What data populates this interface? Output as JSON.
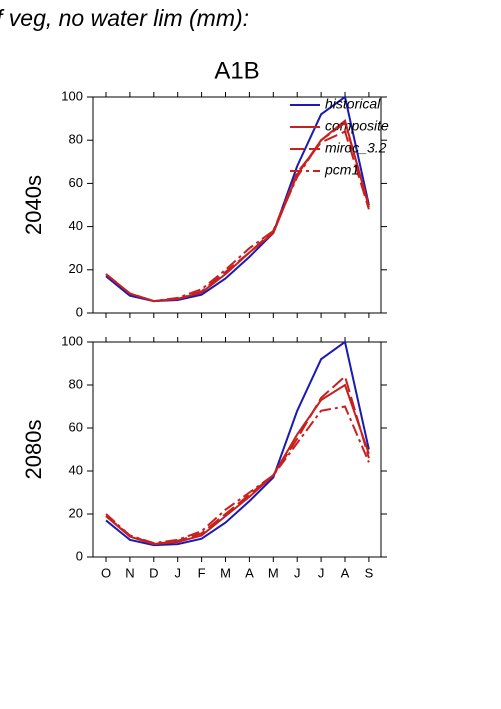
{
  "header": "f veg, no water lim (mm):",
  "chart_data": [
    {
      "type": "line",
      "title": "A1B",
      "y_label": "2040s",
      "ylim": [
        0,
        100
      ],
      "yticks": [
        0,
        20,
        40,
        60,
        80,
        100
      ],
      "legend": "top-right",
      "series": [
        {
          "name": "historical",
          "color": "#1a1ab4",
          "dash": "solid",
          "values": [
            17,
            8,
            5.5,
            6,
            8.5,
            16,
            26,
            37,
            68,
            92,
            100,
            50
          ]
        },
        {
          "name": "composite",
          "color": "#c8201e",
          "dash": "solid",
          "values": [
            18,
            9,
            5.5,
            6.5,
            9.5,
            18,
            28,
            37,
            64,
            80,
            89,
            49
          ]
        },
        {
          "name": "miroc_3.2",
          "color": "#c8201e",
          "dash": "dash",
          "values": [
            18,
            9,
            5.5,
            6.5,
            10,
            19,
            28,
            38,
            65,
            79,
            84,
            48
          ]
        },
        {
          "name": "pcm1",
          "color": "#c8201e",
          "dash": "dashdot",
          "values": [
            18,
            9,
            5.5,
            7,
            11,
            20,
            30,
            38,
            63,
            80,
            88,
            50
          ]
        }
      ]
    },
    {
      "type": "line",
      "y_label": "2080s",
      "categories": [
        "O",
        "N",
        "D",
        "J",
        "F",
        "M",
        "A",
        "M",
        "J",
        "J",
        "A",
        "S"
      ],
      "ylim": [
        0,
        100
      ],
      "yticks": [
        0,
        20,
        40,
        60,
        80,
        100
      ],
      "series": [
        {
          "color": "#1a1ab4",
          "dash": "solid",
          "values": [
            17,
            8,
            5.5,
            6,
            8.5,
            16,
            26,
            37,
            68,
            92,
            100,
            50
          ]
        },
        {
          "color": "#c8201e",
          "dash": "solid",
          "values": [
            19,
            9.5,
            6,
            7,
            10,
            19,
            28,
            38,
            57,
            73,
            80,
            48
          ]
        },
        {
          "color": "#c8201e",
          "dash": "dash",
          "values": [
            19,
            10,
            6,
            7.5,
            11,
            20,
            29,
            38,
            55,
            74,
            84,
            46
          ]
        },
        {
          "color": "#c8201e",
          "dash": "dashdot",
          "values": [
            20,
            10,
            6.5,
            8,
            12,
            22,
            30,
            38,
            53,
            68,
            70,
            44
          ]
        }
      ]
    }
  ]
}
